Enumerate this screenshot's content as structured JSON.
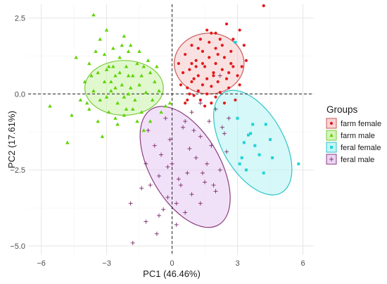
{
  "chart_data": {
    "type": "scatter",
    "title": "",
    "xlabel": "PC1 (46.46%)",
    "ylabel": "PC2 (17.61%)",
    "xlim": [
      -6.6,
      6.5
    ],
    "ylim": [
      -5.3,
      2.95
    ],
    "x_ticks": [
      -6,
      -3,
      0,
      3,
      6
    ],
    "y_ticks": [
      -5.0,
      -2.5,
      0.0,
      2.5
    ],
    "x_tick_labels": [
      "−6",
      "−3",
      "0",
      "3",
      "6"
    ],
    "y_tick_labels": [
      "−5.0",
      "−2.5",
      "0.0",
      "2.5"
    ],
    "grid": true,
    "reference_lines": {
      "x": 0,
      "y": 0,
      "style": "dashed"
    },
    "legend": {
      "title": "Groups",
      "placement": "right",
      "entries": [
        "farm female",
        "farm male",
        "feral female",
        "feral male"
      ]
    },
    "colors": {
      "farm female": "#e31a1c",
      "farm male": "#5fd400",
      "feral female": "#1fd3d8",
      "feral male": "#7b2d6b",
      "farm female fill": "#f6c9c9",
      "farm male fill": "#c9f2a8",
      "feral female fill": "#b5f2f2",
      "feral male fill": "#e6c9f3",
      "farm female border": "#cc5a5a",
      "farm male border": "#7acc3a",
      "feral female border": "#2ec4c8",
      "feral male border": "#8a3f7f"
    },
    "series": [
      {
        "name": "farm female",
        "marker": "circle",
        "points": [
          [
            4.2,
            2.9
          ],
          [
            3.1,
            2.1
          ],
          [
            1.6,
            2.1
          ],
          [
            2.5,
            2.3
          ],
          [
            1.8,
            2.0
          ],
          [
            1.3,
            1.8
          ],
          [
            2.2,
            1.8
          ],
          [
            3.3,
            1.6
          ],
          [
            0.9,
            1.6
          ],
          [
            2.0,
            1.5
          ],
          [
            2.7,
            1.4
          ],
          [
            1.4,
            1.4
          ],
          [
            1.7,
            1.2
          ],
          [
            2.4,
            1.2
          ],
          [
            0.6,
            1.3
          ],
          [
            1.1,
            1.1
          ],
          [
            2.0,
            1.0
          ],
          [
            2.8,
            0.9
          ],
          [
            1.5,
            0.9
          ],
          [
            0.8,
            0.8
          ],
          [
            2.3,
            0.8
          ],
          [
            1.9,
            0.7
          ],
          [
            1.2,
            0.6
          ],
          [
            3.0,
            0.6
          ],
          [
            2.5,
            0.5
          ],
          [
            1.6,
            0.5
          ],
          [
            0.9,
            0.4
          ],
          [
            2.1,
            0.4
          ],
          [
            1.4,
            0.3
          ],
          [
            1.8,
            0.25
          ],
          [
            2.6,
            0.2
          ],
          [
            0.7,
            0.2
          ],
          [
            1.2,
            0.1
          ],
          [
            2.2,
            0.05
          ],
          [
            1.0,
            -0.05
          ],
          [
            1.6,
            0.0
          ],
          [
            2.0,
            -0.1
          ],
          [
            0.6,
            -0.3
          ],
          [
            1.3,
            -0.2
          ],
          [
            0.4,
            0.3
          ],
          [
            2.4,
            -0.3
          ],
          [
            1.9,
            0.6
          ],
          [
            1.1,
            0.9
          ],
          [
            2.7,
            1.0
          ],
          [
            3.1,
            0.3
          ],
          [
            1.7,
            1.7
          ],
          [
            0.9,
            1.0
          ],
          [
            2.1,
            1.3
          ],
          [
            1.5,
            -0.4
          ],
          [
            2.9,
            -0.2
          ],
          [
            0.3,
            1.0
          ],
          [
            3.4,
            1.1
          ],
          [
            1.8,
            -0.3
          ],
          [
            1.0,
            0.5
          ],
          [
            2.3,
            1.6
          ],
          [
            0.5,
            0.7
          ],
          [
            1.4,
            1.0
          ],
          [
            2.6,
            0.7
          ],
          [
            3.2,
            0.9
          ],
          [
            1.2,
            1.5
          ],
          [
            0.8,
            0.0
          ],
          [
            2.0,
            2.0
          ],
          [
            0.7,
            -0.2
          ],
          [
            2.8,
            1.8
          ]
        ]
      },
      {
        "name": "farm male",
        "marker": "triangle",
        "points": [
          [
            -3.6,
            2.6
          ],
          [
            -3.0,
            2.1
          ],
          [
            -3.3,
            1.8
          ],
          [
            -2.2,
            1.9
          ],
          [
            -2.7,
            1.5
          ],
          [
            -1.9,
            1.6
          ],
          [
            -3.1,
            1.3
          ],
          [
            -2.4,
            1.2
          ],
          [
            -1.5,
            1.4
          ],
          [
            -3.8,
            1.0
          ],
          [
            -2.9,
            0.9
          ],
          [
            -2.1,
            0.9
          ],
          [
            -1.3,
            0.9
          ],
          [
            -3.4,
            0.7
          ],
          [
            -2.6,
            0.6
          ],
          [
            -1.8,
            0.6
          ],
          [
            -1.0,
            0.7
          ],
          [
            -4.0,
            0.4
          ],
          [
            -3.1,
            0.4
          ],
          [
            -2.3,
            0.3
          ],
          [
            -1.5,
            0.3
          ],
          [
            -0.8,
            0.4
          ],
          [
            -3.6,
            0.1
          ],
          [
            -2.8,
            0.1
          ],
          [
            -2.0,
            0.0
          ],
          [
            -1.2,
            0.05
          ],
          [
            -0.6,
            0.1
          ],
          [
            -4.2,
            -0.2
          ],
          [
            -3.3,
            -0.2
          ],
          [
            -2.5,
            -0.3
          ],
          [
            -1.7,
            -0.2
          ],
          [
            -0.9,
            -0.2
          ],
          [
            -3.8,
            -0.5
          ],
          [
            -2.9,
            -0.6
          ],
          [
            -2.1,
            -0.5
          ],
          [
            -1.4,
            -0.6
          ],
          [
            -0.3,
            -0.4
          ],
          [
            -3.4,
            -0.9
          ],
          [
            -2.5,
            -1.0
          ],
          [
            -1.6,
            -0.9
          ],
          [
            -4.6,
            -0.7
          ],
          [
            -5.6,
            -0.4
          ],
          [
            -4.8,
            -1.6
          ],
          [
            -3.2,
            -1.4
          ],
          [
            -1.0,
            -0.9
          ],
          [
            -2.0,
            1.4
          ],
          [
            -2.7,
            0.9
          ],
          [
            -3.0,
            -0.1
          ],
          [
            -2.2,
            -0.1
          ],
          [
            -1.9,
            0.2
          ],
          [
            -2.4,
            0.7
          ],
          [
            -1.1,
            1.1
          ],
          [
            -3.5,
            1.4
          ],
          [
            -2.6,
            -0.8
          ],
          [
            -0.5,
            -0.6
          ],
          [
            -0.1,
            -0.3
          ],
          [
            -1.3,
            -1.2
          ],
          [
            -2.8,
            0.4
          ],
          [
            -2.0,
            0.6
          ],
          [
            -3.7,
            0.6
          ],
          [
            -1.6,
            1.0
          ],
          [
            -2.3,
            1.6
          ],
          [
            -4.4,
            1.2
          ],
          [
            -3.0,
            0.8
          ],
          [
            -2.6,
            0.2
          ],
          [
            -1.8,
            -0.5
          ],
          [
            -3.9,
            -0.3
          ],
          [
            -2.2,
            -0.7
          ],
          [
            -1.4,
            0.6
          ],
          [
            -0.7,
            0.9
          ]
        ]
      },
      {
        "name": "feral female",
        "marker": "square",
        "points": [
          [
            5.8,
            -2.3
          ],
          [
            4.3,
            -1.0
          ],
          [
            3.6,
            -1.3
          ],
          [
            3.5,
            -1.35
          ],
          [
            4.0,
            -2.0
          ],
          [
            3.8,
            -1.7
          ],
          [
            3.2,
            -2.1
          ],
          [
            4.5,
            -1.5
          ],
          [
            3.0,
            -0.8
          ],
          [
            3.1,
            -2.3
          ],
          [
            3.4,
            -2.5
          ],
          [
            4.6,
            -2.1
          ],
          [
            3.7,
            -1.0
          ],
          [
            4.2,
            -2.6
          ],
          [
            2.9,
            1.7
          ],
          [
            3.3,
            -1.6
          ]
        ]
      },
      {
        "name": "feral male",
        "marker": "cross",
        "points": [
          [
            -1.8,
            -4.9
          ],
          [
            -0.7,
            -4.6
          ],
          [
            -1.2,
            -4.2
          ],
          [
            0.2,
            -4.3
          ],
          [
            -0.4,
            -3.8
          ],
          [
            0.6,
            -3.9
          ],
          [
            1.3,
            -3.6
          ],
          [
            -1.9,
            -3.6
          ],
          [
            -0.2,
            -3.4
          ],
          [
            0.9,
            -3.3
          ],
          [
            2.0,
            -3.2
          ],
          [
            -1.0,
            -3.0
          ],
          [
            0.4,
            -3.0
          ],
          [
            1.5,
            -2.9
          ],
          [
            -0.6,
            -2.7
          ],
          [
            0.7,
            -2.6
          ],
          [
            2.2,
            -2.5
          ],
          [
            -1.2,
            -2.3
          ],
          [
            0.0,
            -2.3
          ],
          [
            1.1,
            -2.1
          ],
          [
            -0.5,
            -2.0
          ],
          [
            0.8,
            -1.8
          ],
          [
            1.8,
            -1.7
          ],
          [
            -0.1,
            -1.5
          ],
          [
            1.3,
            -1.4
          ],
          [
            2.4,
            -1.3
          ],
          [
            -1.1,
            -1.2
          ],
          [
            0.5,
            -1.1
          ],
          [
            1.7,
            -0.9
          ],
          [
            2.6,
            -0.8
          ],
          [
            -0.3,
            -0.8
          ],
          [
            0.9,
            -0.6
          ],
          [
            2.0,
            -0.5
          ],
          [
            1.3,
            -0.3
          ],
          [
            2.2,
            0.6
          ],
          [
            -0.6,
            -4.0
          ],
          [
            0.3,
            -2.8
          ],
          [
            1.6,
            -2.3
          ],
          [
            -0.8,
            -1.7
          ],
          [
            1.0,
            -1.2
          ],
          [
            2.5,
            -1.9
          ],
          [
            0.2,
            -3.6
          ],
          [
            -1.4,
            -3.1
          ],
          [
            1.9,
            -3.0
          ],
          [
            0.6,
            -0.9
          ],
          [
            -0.2,
            -2.4
          ],
          [
            2.3,
            -1.1
          ],
          [
            1.4,
            -2.6
          ]
        ]
      }
    ],
    "ellipses": [
      {
        "group": "farm female",
        "center": [
          1.7,
          1.0
        ],
        "half_width": 1.6,
        "half_height": 1.0,
        "angle_deg": 0
      },
      {
        "group": "farm male",
        "center": [
          -2.2,
          0.2
        ],
        "half_width": 1.8,
        "half_height": 0.9,
        "angle_deg": 0
      },
      {
        "group": "feral female",
        "center": [
          3.7,
          -1.6
        ],
        "half_width": 1.4,
        "half_height": 1.9,
        "angle_deg": -30
      },
      {
        "group": "feral male",
        "center": [
          0.6,
          -2.4
        ],
        "half_width": 1.6,
        "half_height": 2.2,
        "angle_deg": -30
      }
    ]
  }
}
